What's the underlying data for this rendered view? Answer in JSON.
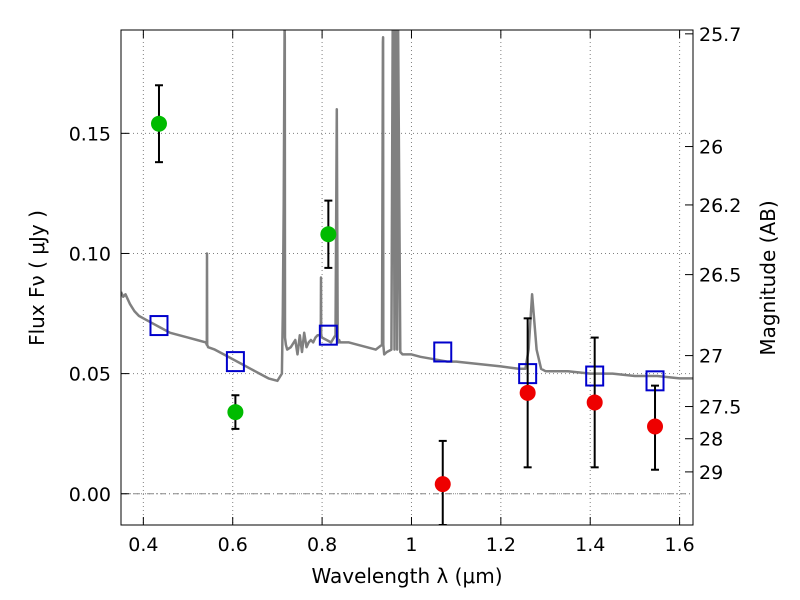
{
  "chart_data": {
    "type": "scatter",
    "title": "",
    "xlabel": "Wavelength  λ (μm)",
    "ylabel": "Flux  Fν  ( μJy )",
    "ylabel_right": "Magnitude (AB)",
    "xlim": [
      0.35,
      1.63
    ],
    "ylim": [
      -0.013,
      0.193
    ],
    "grid": true,
    "x_ticks": [
      0.4,
      0.6,
      0.8,
      1.0,
      1.2,
      1.4,
      1.6
    ],
    "x_tick_labels": [
      "0.4",
      "0.6",
      "0.8",
      "1",
      "1.2",
      "1.4",
      "1.6"
    ],
    "y_ticks": [
      0.0,
      0.05,
      0.1,
      0.15
    ],
    "y_tick_labels": [
      "0.00",
      "0.05",
      "0.10",
      "0.15"
    ],
    "right_ticks": [
      {
        "label": "25.7",
        "flux": 0.1914
      },
      {
        "label": "26",
        "flux": 0.1445
      },
      {
        "label": "26.2",
        "flux": 0.1202
      },
      {
        "label": "26.5",
        "flux": 0.0912
      },
      {
        "label": "27",
        "flux": 0.0575
      },
      {
        "label": "27.5",
        "flux": 0.0363
      },
      {
        "label": "28",
        "flux": 0.0229
      },
      {
        "label": "29",
        "flux": 0.0091
      }
    ],
    "colors": {
      "green": "#00bb00",
      "red": "#ee0000",
      "square": "#0000cc",
      "sed": "#808080",
      "errorbar": "#000000",
      "grid": "#808080"
    },
    "series": [
      {
        "kind": "detections",
        "color": "green",
        "points": [
          {
            "x": 0.435,
            "y": 0.154,
            "err_low": 0.016,
            "err_high": 0.016
          },
          {
            "x": 0.606,
            "y": 0.034,
            "err_low": 0.007,
            "err_high": 0.007
          },
          {
            "x": 0.814,
            "y": 0.108,
            "err_low": 0.014,
            "err_high": 0.014
          }
        ]
      },
      {
        "kind": "detections",
        "color": "red",
        "points": [
          {
            "x": 1.07,
            "y": 0.004,
            "err_low": 0.017,
            "err_high": 0.018
          },
          {
            "x": 1.26,
            "y": 0.042,
            "err_low": 0.031,
            "err_high": 0.031
          },
          {
            "x": 1.41,
            "y": 0.038,
            "err_low": 0.027,
            "err_high": 0.027
          },
          {
            "x": 1.545,
            "y": 0.028,
            "err_low": 0.018,
            "err_high": 0.017
          }
        ]
      },
      {
        "kind": "model_photometry",
        "color": "square",
        "points": [
          {
            "x": 0.435,
            "y": 0.07
          },
          {
            "x": 0.606,
            "y": 0.055
          },
          {
            "x": 0.814,
            "y": 0.066
          },
          {
            "x": 1.07,
            "y": 0.059
          },
          {
            "x": 1.26,
            "y": 0.05
          },
          {
            "x": 1.41,
            "y": 0.049
          },
          {
            "x": 1.545,
            "y": 0.047
          }
        ]
      },
      {
        "kind": "sed_model",
        "color": "sed",
        "x": [
          0.35,
          0.355,
          0.36,
          0.37,
          0.38,
          0.39,
          0.4,
          0.42,
          0.44,
          0.46,
          0.48,
          0.5,
          0.52,
          0.54,
          0.542,
          0.5425,
          0.543,
          0.545,
          0.56,
          0.58,
          0.6,
          0.62,
          0.64,
          0.66,
          0.68,
          0.7,
          0.71,
          0.712,
          0.714,
          0.716,
          0.7165,
          0.717,
          0.719,
          0.722,
          0.73,
          0.74,
          0.745,
          0.75,
          0.755,
          0.76,
          0.765,
          0.77,
          0.775,
          0.78,
          0.785,
          0.79,
          0.795,
          0.797,
          0.7975,
          0.798,
          0.8,
          0.81,
          0.82,
          0.83,
          0.833,
          0.835,
          0.837,
          0.838,
          0.84,
          0.86,
          0.88,
          0.9,
          0.92,
          0.934,
          0.936,
          0.9365,
          0.937,
          0.939,
          0.945,
          0.955,
          0.958,
          0.96,
          0.962,
          0.964,
          0.966,
          0.968,
          0.97,
          0.975,
          0.98,
          1.0,
          1.02,
          1.05,
          1.08,
          1.1,
          1.15,
          1.2,
          1.24,
          1.255,
          1.262,
          1.27,
          1.28,
          1.29,
          1.3,
          1.35,
          1.4,
          1.45,
          1.5,
          1.55,
          1.6,
          1.63
        ],
        "y": [
          0.084,
          0.082,
          0.083,
          0.079,
          0.076,
          0.074,
          0.073,
          0.071,
          0.069,
          0.067,
          0.066,
          0.065,
          0.064,
          0.063,
          0.062,
          0.1,
          0.062,
          0.061,
          0.06,
          0.058,
          0.056,
          0.054,
          0.052,
          0.05,
          0.048,
          0.047,
          0.05,
          0.075,
          0.12,
          0.195,
          0.19,
          0.065,
          0.062,
          0.06,
          0.061,
          0.064,
          0.058,
          0.066,
          0.059,
          0.067,
          0.061,
          0.063,
          0.064,
          0.063,
          0.065,
          0.066,
          0.066,
          0.068,
          0.09,
          0.066,
          0.065,
          0.064,
          0.063,
          0.066,
          0.16,
          0.064,
          0.063,
          0.064,
          0.063,
          0.063,
          0.062,
          0.061,
          0.06,
          0.062,
          0.188,
          0.19,
          0.062,
          0.058,
          0.059,
          0.06,
          0.195,
          0.195,
          0.06,
          0.195,
          0.195,
          0.06,
          0.195,
          0.059,
          0.058,
          0.058,
          0.057,
          0.056,
          0.055,
          0.055,
          0.054,
          0.053,
          0.052,
          0.052,
          0.06,
          0.083,
          0.06,
          0.052,
          0.051,
          0.051,
          0.05,
          0.05,
          0.049,
          0.049,
          0.048,
          0.048
        ]
      }
    ]
  }
}
